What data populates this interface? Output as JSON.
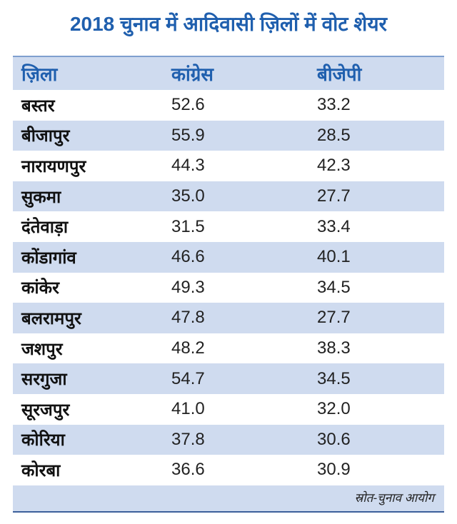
{
  "title": "2018 चुनाव में आदिवासी ज़िलों में वोट शेयर",
  "table": {
    "header": [
      "ज़िला",
      "कांग्रेस",
      "बीजेपी"
    ],
    "rows": [
      [
        "बस्तर",
        "52.6",
        "33.2"
      ],
      [
        "बीजापुर",
        "55.9",
        "28.5"
      ],
      [
        "नारायणपुर",
        "44.3",
        "42.3"
      ],
      [
        "सुकमा",
        "35.0",
        "27.7"
      ],
      [
        "दंतेवाड़ा",
        "31.5",
        "33.4"
      ],
      [
        "कोंडागांव",
        "46.6",
        "40.1"
      ],
      [
        "कांकेर",
        "49.3",
        "34.5"
      ],
      [
        "बलरामपुर",
        "47.8",
        "27.7"
      ],
      [
        "जशपुर",
        "48.2",
        "38.3"
      ],
      [
        "सरगुजा",
        "54.7",
        "34.5"
      ],
      [
        "सूरजपुर",
        "41.0",
        "32.0"
      ],
      [
        "कोरिया",
        "37.8",
        "30.6"
      ],
      [
        "कोरबा",
        "36.6",
        "30.9"
      ]
    ]
  },
  "source": "स्रोत-चुनाव आयोग"
}
